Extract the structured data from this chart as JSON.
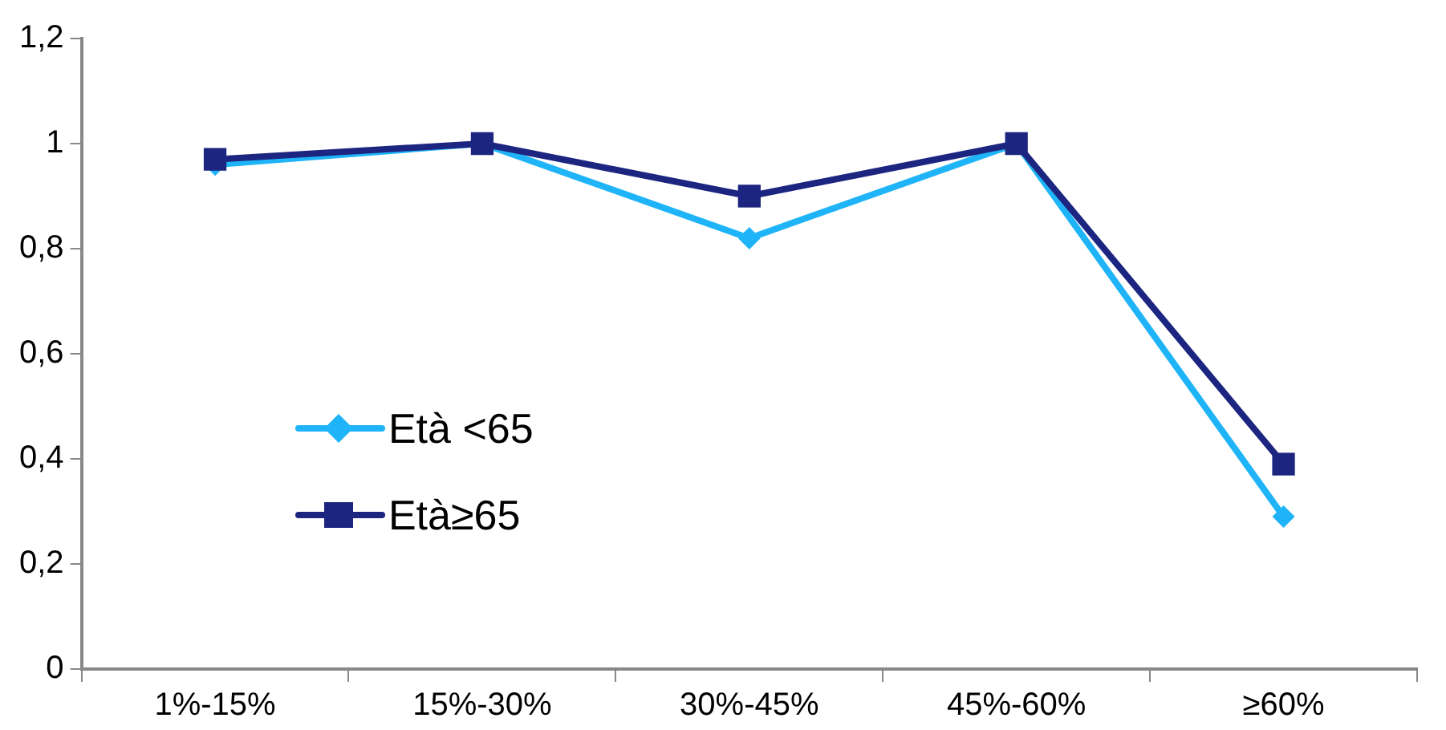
{
  "chart_data": {
    "type": "line",
    "categories": [
      "1%-15%",
      "15%-30%",
      "30%-45%",
      "45%-60%",
      "≥60%"
    ],
    "series": [
      {
        "name": "Età <65",
        "color": "#1fb4f8",
        "marker": "diamond",
        "values": [
          0.96,
          1.0,
          0.82,
          1.0,
          0.29
        ]
      },
      {
        "name": "Età≥65",
        "color": "#1c2580",
        "marker": "square",
        "values": [
          0.97,
          1.0,
          0.9,
          1.0,
          0.39
        ]
      }
    ],
    "ylim": [
      0,
      1.2
    ],
    "yticks": [
      {
        "value": 0,
        "label": "0"
      },
      {
        "value": 0.2,
        "label": "0,2"
      },
      {
        "value": 0.4,
        "label": "0,4"
      },
      {
        "value": 0.6,
        "label": "0,6"
      },
      {
        "value": 0.8,
        "label": "0,8"
      },
      {
        "value": 1,
        "label": "1"
      },
      {
        "value": 1.2,
        "label": "1,2"
      }
    ],
    "grid": false,
    "legend": "left",
    "line_style": "solid"
  }
}
